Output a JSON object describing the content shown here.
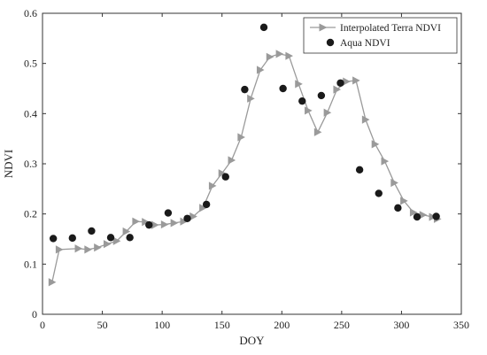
{
  "chart_data": {
    "type": "scatter",
    "xlabel": "DOY",
    "ylabel": "NDVI",
    "xlim": [
      0,
      350
    ],
    "ylim": [
      0,
      0.6
    ],
    "xticks": [
      0,
      50,
      100,
      150,
      200,
      250,
      300,
      350
    ],
    "yticks": [
      0,
      0.1,
      0.2,
      0.3,
      0.4,
      0.5,
      0.6
    ],
    "xtick_labels": [
      "0",
      "50",
      "100",
      "150",
      "200",
      "250",
      "300",
      "350"
    ],
    "ytick_labels": [
      "0",
      "0.1",
      "0.2",
      "0.3",
      "0.4",
      "0.5",
      "0.6"
    ],
    "grid": false,
    "legend_position": "top-right",
    "series": [
      {
        "name": "Interpolated Terra NDVI",
        "style": "line-with-triangle-markers",
        "color": "#9a9a9a",
        "x": [
          8,
          14,
          30,
          38,
          46,
          54,
          62,
          70,
          78,
          86,
          94,
          102,
          110,
          118,
          126,
          134,
          142,
          150,
          158,
          166,
          174,
          182,
          190,
          198,
          206,
          214,
          222,
          230,
          238,
          246,
          254,
          262,
          270,
          278,
          286,
          294,
          302,
          310,
          318,
          326,
          330
        ],
        "y": [
          0.064,
          0.129,
          0.131,
          0.129,
          0.133,
          0.14,
          0.146,
          0.165,
          0.185,
          0.184,
          0.178,
          0.179,
          0.182,
          0.185,
          0.195,
          0.212,
          0.256,
          0.281,
          0.307,
          0.353,
          0.43,
          0.487,
          0.513,
          0.519,
          0.515,
          0.459,
          0.406,
          0.363,
          0.402,
          0.448,
          0.464,
          0.466,
          0.388,
          0.339,
          0.305,
          0.262,
          0.226,
          0.203,
          0.198,
          0.194,
          0.19
        ]
      },
      {
        "name": "Aqua NDVI",
        "style": "filled-circle-markers",
        "color": "#1a1a1a",
        "x": [
          9,
          25,
          41,
          57,
          73,
          89,
          105,
          121,
          137,
          153,
          169,
          185,
          201,
          217,
          233,
          249,
          265,
          281,
          297,
          313,
          329
        ],
        "y": [
          0.151,
          0.152,
          0.166,
          0.153,
          0.153,
          0.178,
          0.202,
          0.191,
          0.219,
          0.274,
          0.448,
          0.572,
          0.45,
          0.425,
          0.436,
          0.461,
          0.288,
          0.241,
          0.212,
          0.194,
          0.195
        ]
      }
    ]
  }
}
